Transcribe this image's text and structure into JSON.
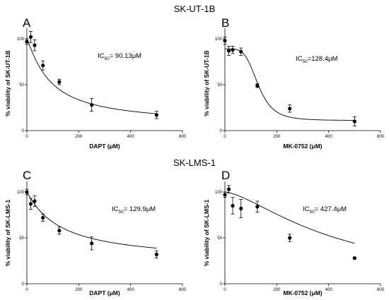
{
  "section_titles": [
    "SK-UT-1B",
    "SK-LMS-1"
  ],
  "chart_data": [
    {
      "type": "scatter",
      "panel": "A",
      "title": "",
      "xlabel": "DAPT (μM)",
      "ylabel": "% viability of SK-UT-1B",
      "xlim": [
        0,
        600
      ],
      "ylim": [
        0,
        110
      ],
      "xticks": [
        0,
        200,
        400,
        600
      ],
      "yticks": [
        0,
        50,
        100
      ],
      "ic50_label": "IC",
      "ic50_sub": "50",
      "ic50_value": "= 90.13μM",
      "points": [
        {
          "x": 0,
          "y": 97,
          "err": 3
        },
        {
          "x": 15,
          "y": 102,
          "err": 6
        },
        {
          "x": 30,
          "y": 93,
          "err": 6
        },
        {
          "x": 62,
          "y": 71,
          "err": 5
        },
        {
          "x": 125,
          "y": 53,
          "err": 3
        },
        {
          "x": 250,
          "y": 28,
          "err": 7
        },
        {
          "x": 500,
          "y": 17,
          "err": 4
        }
      ],
      "curve": {
        "model": "hill",
        "top": 100,
        "bottom": 7,
        "ec50": 90.13,
        "hill": 1.15
      }
    },
    {
      "type": "scatter",
      "panel": "B",
      "title": "",
      "xlabel": "MK-0752 (μM)",
      "ylabel": "% viability of SK-UT-1B",
      "xlim": [
        0,
        600
      ],
      "ylim": [
        0,
        110
      ],
      "xticks": [
        0,
        200,
        400,
        600
      ],
      "yticks": [
        0,
        50,
        100
      ],
      "ic50_label": "IC",
      "ic50_sub": "50",
      "ic50_value": "=128.4μM",
      "points": [
        {
          "x": 0,
          "y": 98,
          "err": 4
        },
        {
          "x": 15,
          "y": 87,
          "err": 5
        },
        {
          "x": 30,
          "y": 88,
          "err": 4
        },
        {
          "x": 62,
          "y": 86,
          "err": 4
        },
        {
          "x": 125,
          "y": 49,
          "err": 2
        },
        {
          "x": 250,
          "y": 24,
          "err": 4
        },
        {
          "x": 500,
          "y": 10,
          "err": 5
        }
      ],
      "curve": {
        "model": "hill",
        "top": 89,
        "bottom": 11,
        "ec50": 128.4,
        "hill": 4.5
      }
    },
    {
      "type": "scatter",
      "panel": "C",
      "title": "",
      "xlabel": "DAPT (μM)",
      "ylabel": "% viability of SK-LMS-1",
      "xlim": [
        0,
        600
      ],
      "ylim": [
        0,
        110
      ],
      "xticks": [
        0,
        200,
        400,
        600
      ],
      "yticks": [
        0,
        50,
        100
      ],
      "ic50_label": "IC",
      "ic50_sub": "50",
      "ic50_value": "= 129.9μM",
      "points": [
        {
          "x": 0,
          "y": 100,
          "err": 3
        },
        {
          "x": 15,
          "y": 87,
          "err": 6
        },
        {
          "x": 30,
          "y": 90,
          "err": 6
        },
        {
          "x": 62,
          "y": 72,
          "err": 4
        },
        {
          "x": 125,
          "y": 58,
          "err": 4
        },
        {
          "x": 250,
          "y": 44,
          "err": 7
        },
        {
          "x": 500,
          "y": 32,
          "err": 4
        }
      ],
      "curve": {
        "model": "hill",
        "top": 100,
        "bottom": 24,
        "ec50": 129.9,
        "hill": 1.05
      }
    },
    {
      "type": "scatter",
      "panel": "D",
      "title": "",
      "xlabel": "MK-0752 (μM)",
      "ylabel": "% viability of SK-LMS-1",
      "xlim": [
        0,
        600
      ],
      "ylim": [
        0,
        110
      ],
      "xticks": [
        0,
        200,
        400,
        600
      ],
      "yticks": [
        0,
        50,
        100
      ],
      "ic50_label": "IC",
      "ic50_sub": "50",
      "ic50_value": "= 427.4μM",
      "points": [
        {
          "x": 0,
          "y": 97,
          "err": 3
        },
        {
          "x": 15,
          "y": 103,
          "err": 4
        },
        {
          "x": 30,
          "y": 85,
          "err": 9
        },
        {
          "x": 62,
          "y": 82,
          "err": 10
        },
        {
          "x": 125,
          "y": 84,
          "err": 6
        },
        {
          "x": 250,
          "y": 50,
          "err": 4
        },
        {
          "x": 500,
          "y": 28,
          "err": 1
        }
      ],
      "curve": {
        "model": "hill",
        "top": 100,
        "bottom": 0,
        "ec50": 427.4,
        "hill": 1.5
      }
    }
  ]
}
